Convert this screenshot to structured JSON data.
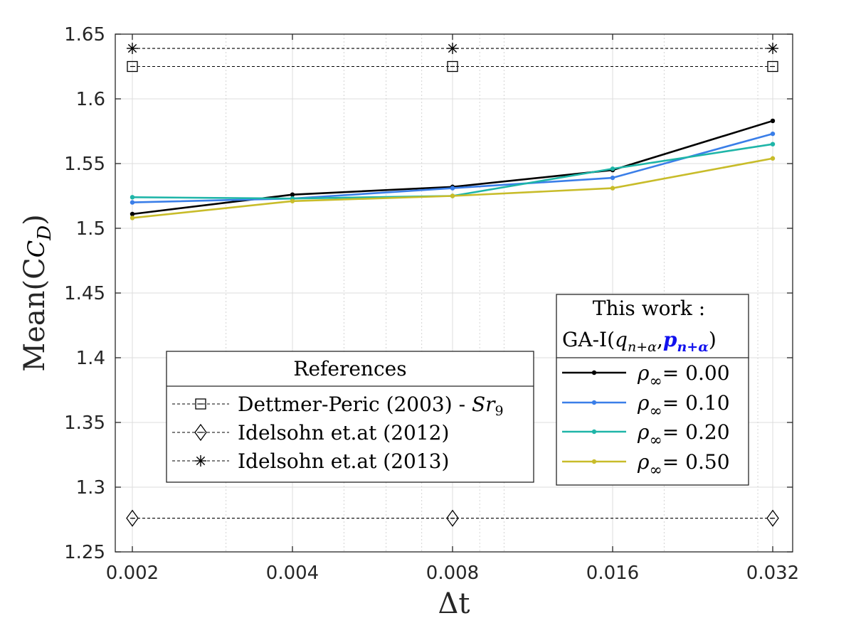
{
  "chart_data": {
    "type": "line",
    "xscale": "log",
    "xlabel": "Δt",
    "ylabel": "Mean(C",
    "ylabel_sub": "D",
    "ylabel_close": ")",
    "x": [
      0.002,
      0.004,
      0.008,
      0.016,
      0.032
    ],
    "x_tick_labels": [
      "0.002",
      "0.004",
      "0.008",
      "0.016",
      "0.032"
    ],
    "xlim": [
      0.002,
      0.0345
    ],
    "ylim": [
      1.25,
      1.65
    ],
    "y_ticks": [
      1.25,
      1.3,
      1.35,
      1.4,
      1.45,
      1.5,
      1.55,
      1.6,
      1.65
    ],
    "y_tick_labels": [
      "1.25",
      "1.3",
      "1.35",
      "1.4",
      "1.45",
      "1.5",
      "1.55",
      "1.6",
      "1.65"
    ],
    "grid": true,
    "series": [
      {
        "key": "rho000",
        "label_prefix": "ρ",
        "label_sub": "∞",
        "label_value": "= 0.00",
        "color": "#000000",
        "values": [
          1.511,
          1.526,
          1.532,
          1.545,
          1.583
        ]
      },
      {
        "key": "rho010",
        "label_prefix": "ρ",
        "label_sub": "∞",
        "label_value": "= 0.10",
        "color": "#3a7ee8",
        "values": [
          1.52,
          1.523,
          1.531,
          1.539,
          1.573
        ]
      },
      {
        "key": "rho020",
        "label_prefix": "ρ",
        "label_sub": "∞",
        "label_value": "= 0.20",
        "color": "#1fb5a8",
        "values": [
          1.524,
          1.523,
          1.525,
          1.546,
          1.565
        ]
      },
      {
        "key": "rho050",
        "label_prefix": "ρ",
        "label_sub": "∞",
        "label_value": "= 0.50",
        "color": "#c8bc2a",
        "values": [
          1.508,
          1.521,
          1.525,
          1.531,
          1.554
        ]
      }
    ],
    "references": [
      {
        "key": "dettmer",
        "label": "Dettmer-Peric (2003) - ",
        "label_math": "Sr",
        "label_math_sub": "9",
        "marker": "square",
        "value": 1.625
      },
      {
        "key": "idelsohn2012",
        "label": "Idelsohn et.at (2012)",
        "marker": "diamond",
        "value": 1.276
      },
      {
        "key": "idelsohn2013",
        "label": "Idelsohn et.at (2013)",
        "marker": "asterisk",
        "value": 1.639
      }
    ],
    "reference_marker_x": [
      0.002,
      0.008,
      0.032
    ],
    "legend_references": {
      "title": "References",
      "position": "center-left"
    },
    "legend_series": {
      "title_line1": "This work :",
      "title_line2_prefix": "GA-I(",
      "title_q": "q",
      "title_q_sub": "n+α",
      "title_comma": ",",
      "title_p": "p",
      "title_p_sub": "n+α",
      "title_close": ")",
      "title_p_color": "#1111ee",
      "position": "lower-right"
    }
  }
}
